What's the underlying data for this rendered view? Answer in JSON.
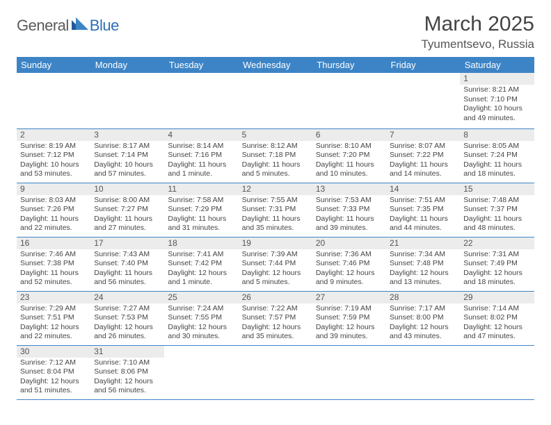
{
  "logo": {
    "part1": "General",
    "part2": "Blue"
  },
  "title": "March 2025",
  "location": "Tyumentsevo, Russia",
  "headers": [
    "Sunday",
    "Monday",
    "Tuesday",
    "Wednesday",
    "Thursday",
    "Friday",
    "Saturday"
  ],
  "header_bg": "#3d84c6",
  "header_fg": "#ffffff",
  "cell_border": "#3d84c6",
  "daynum_bg": "#ececec",
  "weeks": [
    [
      null,
      null,
      null,
      null,
      null,
      null,
      {
        "n": "1",
        "sr": "8:21 AM",
        "ss": "7:10 PM",
        "dl": "10 hours and 49 minutes."
      }
    ],
    [
      {
        "n": "2",
        "sr": "8:19 AM",
        "ss": "7:12 PM",
        "dl": "10 hours and 53 minutes."
      },
      {
        "n": "3",
        "sr": "8:17 AM",
        "ss": "7:14 PM",
        "dl": "10 hours and 57 minutes."
      },
      {
        "n": "4",
        "sr": "8:14 AM",
        "ss": "7:16 PM",
        "dl": "11 hours and 1 minute."
      },
      {
        "n": "5",
        "sr": "8:12 AM",
        "ss": "7:18 PM",
        "dl": "11 hours and 5 minutes."
      },
      {
        "n": "6",
        "sr": "8:10 AM",
        "ss": "7:20 PM",
        "dl": "11 hours and 10 minutes."
      },
      {
        "n": "7",
        "sr": "8:07 AM",
        "ss": "7:22 PM",
        "dl": "11 hours and 14 minutes."
      },
      {
        "n": "8",
        "sr": "8:05 AM",
        "ss": "7:24 PM",
        "dl": "11 hours and 18 minutes."
      }
    ],
    [
      {
        "n": "9",
        "sr": "8:03 AM",
        "ss": "7:26 PM",
        "dl": "11 hours and 22 minutes."
      },
      {
        "n": "10",
        "sr": "8:00 AM",
        "ss": "7:27 PM",
        "dl": "11 hours and 27 minutes."
      },
      {
        "n": "11",
        "sr": "7:58 AM",
        "ss": "7:29 PM",
        "dl": "11 hours and 31 minutes."
      },
      {
        "n": "12",
        "sr": "7:55 AM",
        "ss": "7:31 PM",
        "dl": "11 hours and 35 minutes."
      },
      {
        "n": "13",
        "sr": "7:53 AM",
        "ss": "7:33 PM",
        "dl": "11 hours and 39 minutes."
      },
      {
        "n": "14",
        "sr": "7:51 AM",
        "ss": "7:35 PM",
        "dl": "11 hours and 44 minutes."
      },
      {
        "n": "15",
        "sr": "7:48 AM",
        "ss": "7:37 PM",
        "dl": "11 hours and 48 minutes."
      }
    ],
    [
      {
        "n": "16",
        "sr": "7:46 AM",
        "ss": "7:38 PM",
        "dl": "11 hours and 52 minutes."
      },
      {
        "n": "17",
        "sr": "7:43 AM",
        "ss": "7:40 PM",
        "dl": "11 hours and 56 minutes."
      },
      {
        "n": "18",
        "sr": "7:41 AM",
        "ss": "7:42 PM",
        "dl": "12 hours and 1 minute."
      },
      {
        "n": "19",
        "sr": "7:39 AM",
        "ss": "7:44 PM",
        "dl": "12 hours and 5 minutes."
      },
      {
        "n": "20",
        "sr": "7:36 AM",
        "ss": "7:46 PM",
        "dl": "12 hours and 9 minutes."
      },
      {
        "n": "21",
        "sr": "7:34 AM",
        "ss": "7:48 PM",
        "dl": "12 hours and 13 minutes."
      },
      {
        "n": "22",
        "sr": "7:31 AM",
        "ss": "7:49 PM",
        "dl": "12 hours and 18 minutes."
      }
    ],
    [
      {
        "n": "23",
        "sr": "7:29 AM",
        "ss": "7:51 PM",
        "dl": "12 hours and 22 minutes."
      },
      {
        "n": "24",
        "sr": "7:27 AM",
        "ss": "7:53 PM",
        "dl": "12 hours and 26 minutes."
      },
      {
        "n": "25",
        "sr": "7:24 AM",
        "ss": "7:55 PM",
        "dl": "12 hours and 30 minutes."
      },
      {
        "n": "26",
        "sr": "7:22 AM",
        "ss": "7:57 PM",
        "dl": "12 hours and 35 minutes."
      },
      {
        "n": "27",
        "sr": "7:19 AM",
        "ss": "7:59 PM",
        "dl": "12 hours and 39 minutes."
      },
      {
        "n": "28",
        "sr": "7:17 AM",
        "ss": "8:00 PM",
        "dl": "12 hours and 43 minutes."
      },
      {
        "n": "29",
        "sr": "7:14 AM",
        "ss": "8:02 PM",
        "dl": "12 hours and 47 minutes."
      }
    ],
    [
      {
        "n": "30",
        "sr": "7:12 AM",
        "ss": "8:04 PM",
        "dl": "12 hours and 51 minutes."
      },
      {
        "n": "31",
        "sr": "7:10 AM",
        "ss": "8:06 PM",
        "dl": "12 hours and 56 minutes."
      },
      null,
      null,
      null,
      null,
      null
    ]
  ],
  "labels": {
    "sunrise": "Sunrise:",
    "sunset": "Sunset:",
    "daylight": "Daylight:"
  }
}
